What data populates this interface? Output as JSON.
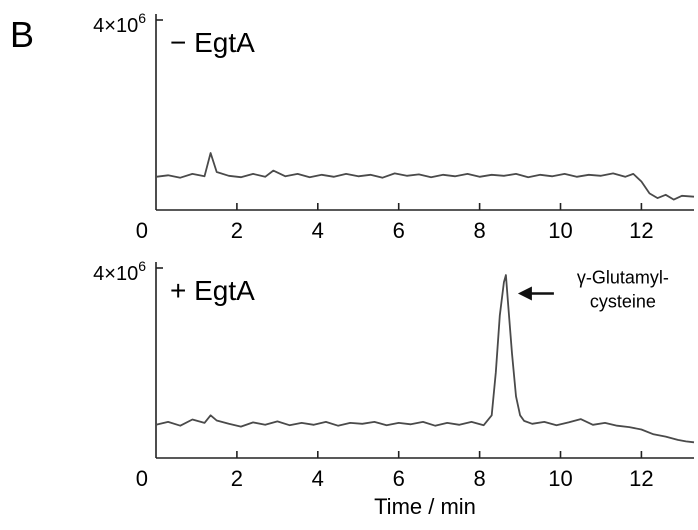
{
  "figure": {
    "panel_letter": "B"
  },
  "chart_data": [
    {
      "type": "line",
      "title": "",
      "panel_label": "− EgtA",
      "xlabel": "",
      "ylabel": "",
      "y_max_label": "4×10",
      "y_max_exp": "6",
      "y_min_label": "0",
      "xlim": [
        0,
        13.3
      ],
      "ylim": [
        0,
        4000000
      ],
      "x_ticks": [
        "2",
        "4",
        "6",
        "8",
        "10",
        "12"
      ],
      "grid": false,
      "series": [
        {
          "color": "#4a4a4a",
          "x": [
            0.0,
            0.3,
            0.6,
            0.9,
            1.2,
            1.35,
            1.5,
            1.8,
            2.1,
            2.4,
            2.7,
            2.9,
            3.2,
            3.5,
            3.8,
            4.1,
            4.4,
            4.7,
            5.0,
            5.3,
            5.6,
            5.9,
            6.2,
            6.5,
            6.8,
            7.1,
            7.4,
            7.7,
            8.0,
            8.3,
            8.6,
            8.9,
            9.2,
            9.5,
            9.8,
            10.1,
            10.4,
            10.7,
            11.0,
            11.3,
            11.6,
            11.8,
            12.0,
            12.2,
            12.4,
            12.6,
            12.8,
            13.0,
            13.3
          ],
          "values": [
            700000,
            730000,
            680000,
            760000,
            710000,
            1200000,
            800000,
            720000,
            690000,
            760000,
            700000,
            830000,
            710000,
            760000,
            690000,
            740000,
            700000,
            760000,
            710000,
            740000,
            680000,
            770000,
            720000,
            750000,
            690000,
            740000,
            710000,
            760000,
            700000,
            740000,
            720000,
            760000,
            690000,
            740000,
            710000,
            760000,
            700000,
            740000,
            720000,
            770000,
            700000,
            760000,
            600000,
            350000,
            250000,
            320000,
            220000,
            300000,
            280000
          ]
        }
      ]
    },
    {
      "type": "line",
      "title": "",
      "panel_label": "+ EgtA",
      "xlabel": "Time / min",
      "ylabel": "",
      "y_max_label": "4×10",
      "y_max_exp": "6",
      "y_min_label": "0",
      "xlim": [
        0,
        13.3
      ],
      "ylim": [
        0,
        4000000
      ],
      "x_ticks": [
        "2",
        "4",
        "6",
        "8",
        "10",
        "12"
      ],
      "grid": false,
      "annotation": {
        "lines": [
          "γ-Glutamyl-",
          "cysteine"
        ],
        "x": 8.65,
        "y": 3800000
      },
      "series": [
        {
          "color": "#4a4a4a",
          "x": [
            0.0,
            0.3,
            0.6,
            0.9,
            1.2,
            1.35,
            1.5,
            1.8,
            2.1,
            2.4,
            2.7,
            3.0,
            3.3,
            3.6,
            3.9,
            4.2,
            4.5,
            4.8,
            5.1,
            5.4,
            5.7,
            6.0,
            6.3,
            6.6,
            6.9,
            7.2,
            7.5,
            7.8,
            8.1,
            8.3,
            8.4,
            8.5,
            8.6,
            8.65,
            8.7,
            8.8,
            8.9,
            9.0,
            9.1,
            9.3,
            9.6,
            9.9,
            10.2,
            10.5,
            10.8,
            11.1,
            11.4,
            11.7,
            12.0,
            12.3,
            12.6,
            12.9,
            13.1,
            13.3
          ],
          "values": [
            700000,
            760000,
            680000,
            810000,
            740000,
            900000,
            790000,
            720000,
            660000,
            750000,
            700000,
            770000,
            690000,
            740000,
            700000,
            760000,
            680000,
            740000,
            720000,
            760000,
            690000,
            740000,
            710000,
            760000,
            680000,
            740000,
            700000,
            760000,
            690000,
            900000,
            1800000,
            3000000,
            3700000,
            3850000,
            3300000,
            2200000,
            1300000,
            900000,
            780000,
            720000,
            760000,
            690000,
            750000,
            820000,
            700000,
            740000,
            680000,
            650000,
            600000,
            500000,
            450000,
            380000,
            350000,
            330000
          ]
        }
      ]
    }
  ]
}
